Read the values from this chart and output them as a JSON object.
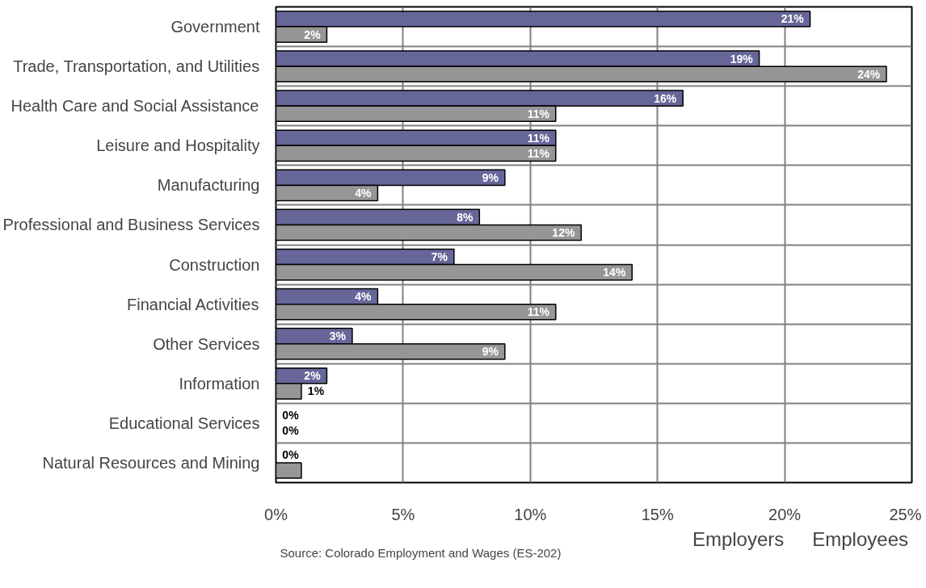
{
  "chart_data": {
    "type": "bar",
    "orientation": "horizontal",
    "categories": [
      "Government",
      "Trade, Transportation, and Utilities",
      "Health Care and Social Assistance",
      "Leisure and Hospitality",
      "Manufacturing",
      "Professional and Business Services",
      "Construction",
      "Financial Activities",
      "Other Services",
      "Information",
      "Educational Services",
      "Natural Resources and Mining"
    ],
    "series": [
      {
        "name": "Employees",
        "color": "#666699",
        "values": [
          21,
          19,
          16,
          11,
          9,
          8,
          7,
          4,
          3,
          2,
          0,
          0
        ],
        "value_labels": [
          "21%",
          "19%",
          "16%",
          "11%",
          "9%",
          "8%",
          "7%",
          "4%",
          "3%",
          "2%",
          "0%",
          "0%"
        ]
      },
      {
        "name": "Employers",
        "color": "#969696",
        "values": [
          2,
          24,
          11,
          11,
          4,
          12,
          14,
          11,
          9,
          1,
          0,
          1
        ],
        "value_labels": [
          "2%",
          "24%",
          "11%",
          "11%",
          "4%",
          "12%",
          "14%",
          "11%",
          "9%",
          "1%",
          "0%",
          null
        ]
      }
    ],
    "xlim": [
      0,
      25
    ],
    "xticks": [
      {
        "value": 0,
        "label": "0%"
      },
      {
        "value": 5,
        "label": "5%"
      },
      {
        "value": 10,
        "label": "10%"
      },
      {
        "value": 15,
        "label": "15%"
      },
      {
        "value": 20,
        "label": "20%"
      },
      {
        "value": 25,
        "label": "25%"
      }
    ],
    "grid": true,
    "legend": "bottom right",
    "annotations": [
      "Source: Colorado Employment and Wages (ES-202)"
    ]
  }
}
